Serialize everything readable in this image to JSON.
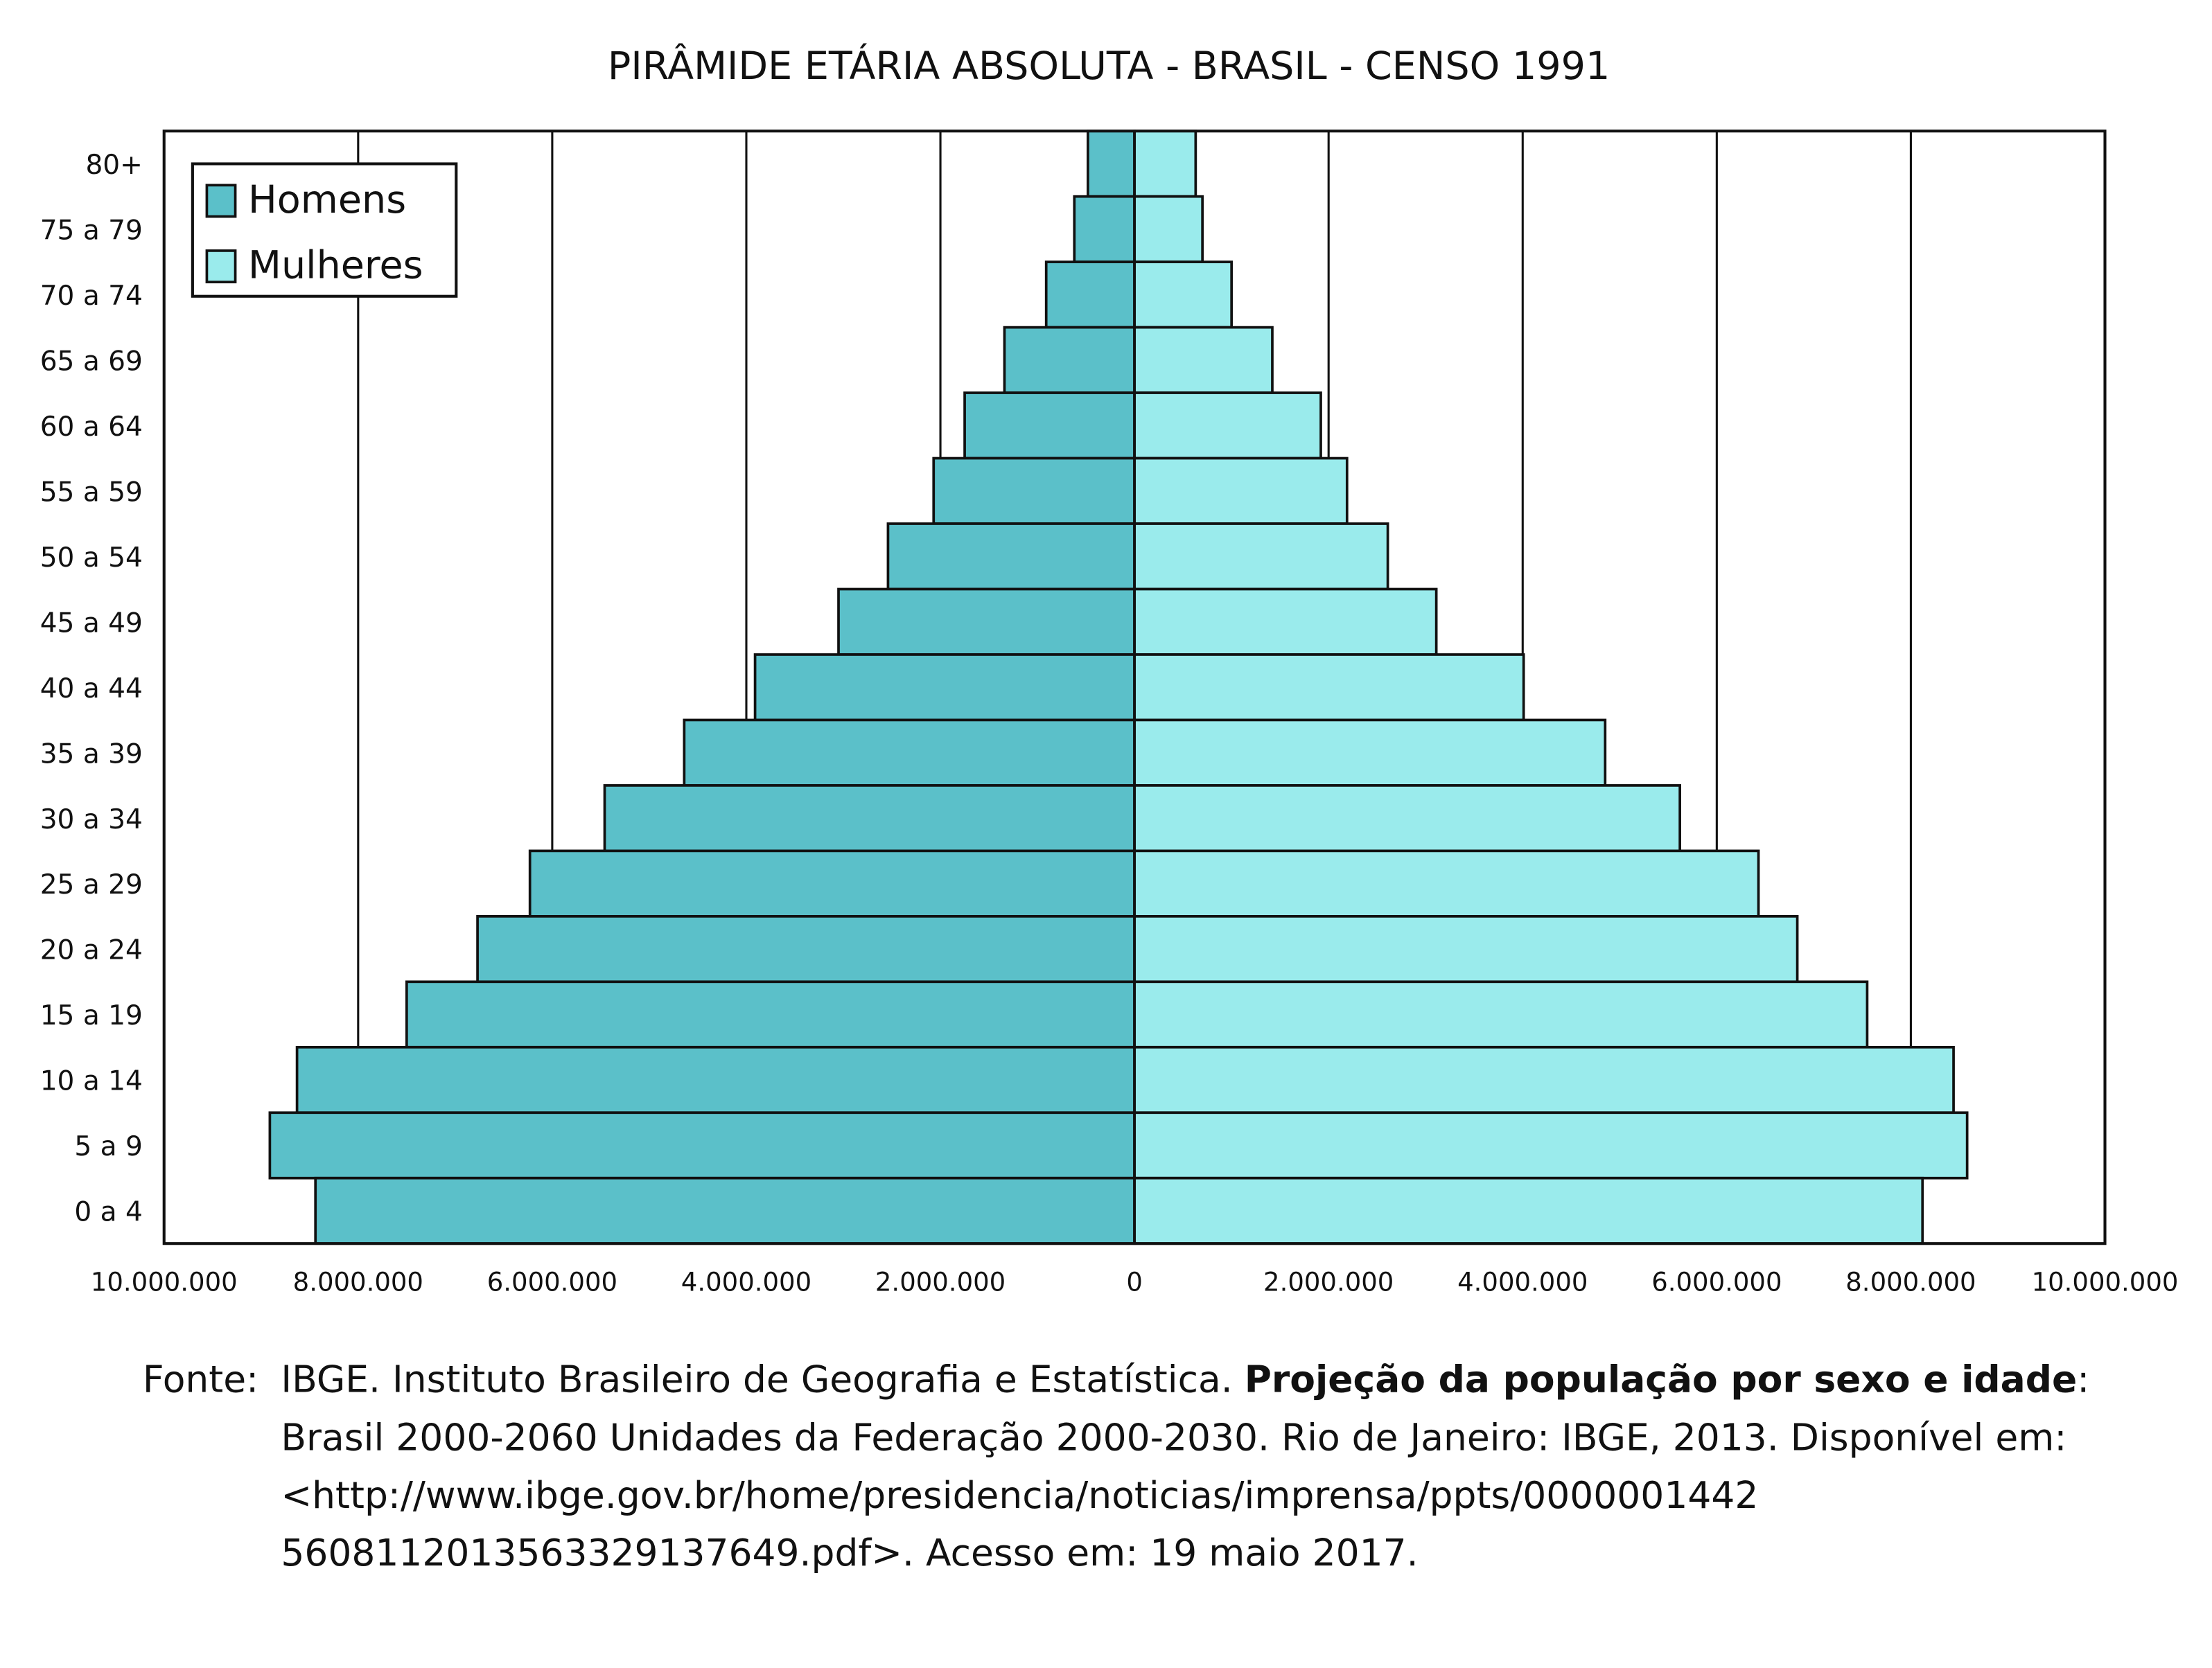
{
  "chart_data": {
    "type": "pyramid",
    "title": "PIRÂMIDE ETÁRIA ABSOLUTA - BRASIL - CENSO 1991",
    "categories": [
      "80+",
      "75 a 79",
      "70 a 74",
      "65 a 69",
      "60 a 64",
      "55 a 59",
      "50 a 54",
      "45 a 49",
      "40 a 44",
      "35 a 39",
      "30 a 34",
      "25 a 29",
      "20 a 24",
      "15 a 19",
      "10 a 14",
      "5 a 9",
      "0 a 4"
    ],
    "series": [
      {
        "name": "Homens",
        "color": "#5bc0c9",
        "side": "left",
        "values": [
          480000,
          620000,
          910000,
          1340000,
          1750000,
          2070000,
          2540000,
          3050000,
          3910000,
          4640000,
          5460000,
          6230000,
          6770000,
          7500000,
          8630000,
          8910000,
          8440000
        ]
      },
      {
        "name": "Mulheres",
        "color": "#9aebec",
        "side": "right",
        "values": [
          630000,
          700000,
          1000000,
          1420000,
          1920000,
          2190000,
          2610000,
          3110000,
          4010000,
          4850000,
          5620000,
          6430000,
          6830000,
          7550000,
          8440000,
          8580000,
          8120000
        ]
      }
    ],
    "xlim": [
      -10000000,
      10000000
    ],
    "xticks": [
      {
        "value": -10000000,
        "label": "10.000.000"
      },
      {
        "value": -8000000,
        "label": "8.000.000"
      },
      {
        "value": -6000000,
        "label": "6.000.000"
      },
      {
        "value": -4000000,
        "label": "4.000.000"
      },
      {
        "value": -2000000,
        "label": "2.000.000"
      },
      0,
      {
        "value": 2000000,
        "label": "2.000.000"
      },
      {
        "value": 4000000,
        "label": "4.000.000"
      },
      {
        "value": 6000000,
        "label": "6.000.000"
      },
      {
        "value": 8000000,
        "label": "8.000.000"
      },
      {
        "value": 10000000,
        "label": "10.000.000"
      }
    ],
    "grid": true,
    "legend": "upper left"
  },
  "source": {
    "label": "Fonte:",
    "line_1_start": "IBGE. Instituto Brasileiro de Geografia e Estatística. ",
    "line_1_bold": "Projeção da população por sexo e idade",
    "line_1_end": ":",
    "lines": [
      "Brasil 2000-2060 Unidades da Federação 2000-2030. Rio de Janeiro: IBGE, 2013. Disponível em:",
      "<http://www.ibge.gov.br/home/presidencia/noticias/imprensa/ppts/0000001442",
      "5608112013563329137649.pdf>. Acesso em: 19 maio 2017."
    ]
  }
}
